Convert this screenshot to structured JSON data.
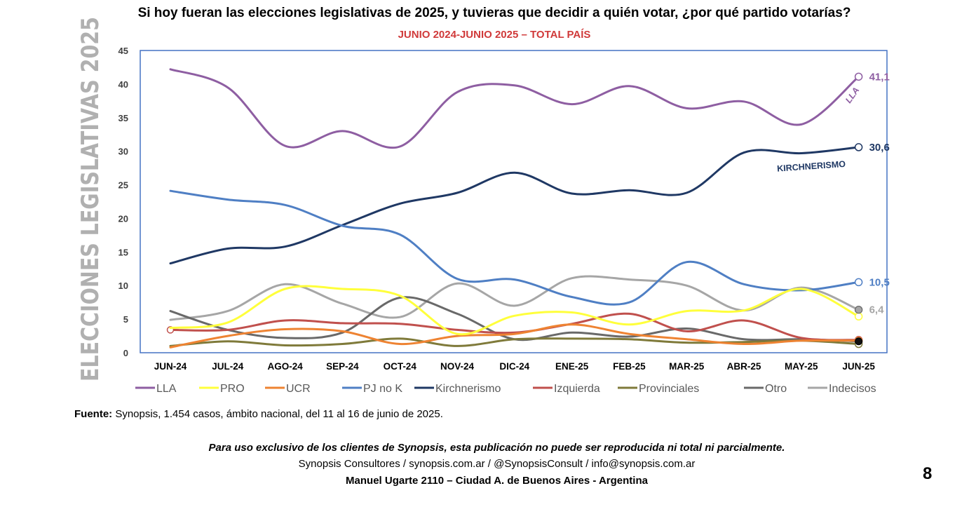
{
  "page": {
    "side_title": "ELECCIONES LEGISLATIVAS 2025",
    "source_label": "Fuente:",
    "source_text": " Synopsis, 1.454 casos, ámbito nacional, del 11 al 16 de junio de 2025.",
    "disclaimer": "Para uso exclusivo de los clientes de Synopsis, esta publicación no puede ser reproducida ni total ni parcialmente.",
    "contact": "Synopsis Consultores / synopsis.com.ar / @SynopsisConsult / info@synopsis.com.ar",
    "address": "Manuel Ugarte 2110 – Ciudad A. de Buenos Aires - Argentina",
    "page_number": "8"
  },
  "chart_data": {
    "type": "line",
    "title": "Si hoy fueran las elecciones legislativas de 2025, y tuvieras que decidir a quién votar, ¿por qué partido votarías?",
    "subtitle": "JUNIO 2024-JUNIO 2025 – TOTAL PAÍS",
    "categories": [
      "JUN-24",
      "JUL-24",
      "AGO-24",
      "SEP-24",
      "OCT-24",
      "NOV-24",
      "DIC-24",
      "ENE-25",
      "FEB-25",
      "MAR-25",
      "ABR-25",
      "MAY-25",
      "JUN-25"
    ],
    "ylim": [
      0,
      45
    ],
    "yticks": [
      0,
      5,
      10,
      15,
      20,
      25,
      30,
      35,
      40,
      45
    ],
    "grid": false,
    "legend_position": "bottom",
    "series": [
      {
        "name": "LLA",
        "color": "#8e5ea2",
        "values": [
          42.2,
          39.5,
          30.8,
          33.0,
          30.7,
          38.8,
          39.8,
          37.0,
          39.7,
          36.4,
          37.4,
          34.0,
          41.1
        ]
      },
      {
        "name": "PRO",
        "color": "#ffff3b",
        "values": [
          3.7,
          4.5,
          9.5,
          9.5,
          8.5,
          2.8,
          5.5,
          6.0,
          4.2,
          6.2,
          6.3,
          9.5,
          5.4
        ]
      },
      {
        "name": "UCR",
        "color": "#ee8332",
        "values": [
          0.8,
          2.5,
          3.5,
          3.2,
          1.3,
          2.5,
          2.8,
          4.2,
          2.8,
          2.0,
          1.3,
          1.8,
          1.8
        ]
      },
      {
        "name": "PJ no K",
        "color": "#4f7fc4",
        "values": [
          24.1,
          22.8,
          22.0,
          18.9,
          17.6,
          11.0,
          10.9,
          8.3,
          7.5,
          13.5,
          10.2,
          9.3,
          10.5
        ]
      },
      {
        "name": "Kirchnerismo",
        "color": "#1f3864",
        "values": [
          13.3,
          15.5,
          15.8,
          19.0,
          22.2,
          23.8,
          26.8,
          23.7,
          24.2,
          23.8,
          29.8,
          29.7,
          30.6
        ]
      },
      {
        "name": "Izquierda",
        "color": "#c0504d",
        "values": [
          3.4,
          3.4,
          4.8,
          4.4,
          4.3,
          3.4,
          3.0,
          4.3,
          5.8,
          3.2,
          4.8,
          2.2,
          1.9
        ]
      },
      {
        "name": "Provinciales",
        "color": "#7f7a3a",
        "values": [
          1.0,
          1.7,
          1.1,
          1.3,
          2.1,
          1.0,
          2.0,
          2.1,
          2.0,
          1.5,
          1.6,
          1.8,
          1.3
        ]
      },
      {
        "name": "Otro",
        "color": "#696969",
        "values": [
          6.2,
          3.4,
          2.2,
          3.0,
          8.2,
          5.8,
          2.0,
          3.0,
          2.4,
          3.6,
          2.0,
          2.0,
          1.7
        ]
      },
      {
        "name": "Indecisos",
        "color": "#a6a6a6",
        "values": [
          4.9,
          6.2,
          10.2,
          7.3,
          5.3,
          10.3,
          7.0,
          11.1,
          10.9,
          10.0,
          6.3,
          9.7,
          6.4
        ]
      }
    ],
    "value_labels": [
      {
        "series": "LLA",
        "text": "41,1"
      },
      {
        "series": "Kirchnerismo",
        "text": "30,6"
      },
      {
        "series": "PJ no K",
        "text": "10,5"
      },
      {
        "series": "Indecisos",
        "text": "6,4"
      }
    ],
    "annotations": [
      "LLA",
      "KIRCHNERISMO"
    ]
  }
}
